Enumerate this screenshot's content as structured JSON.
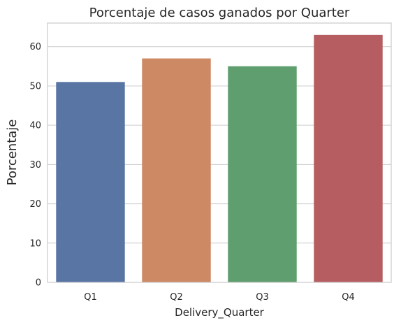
{
  "chart_data": {
    "type": "bar",
    "title": "Porcentaje de casos ganados por Quarter",
    "xlabel": "Delivery_Quarter",
    "ylabel": "Porcentaje",
    "categories": [
      "Q1",
      "Q2",
      "Q3",
      "Q4"
    ],
    "values": [
      51,
      57,
      55,
      63
    ],
    "colors": [
      "#5875a4",
      "#cc8963",
      "#5f9e6e",
      "#b55d60"
    ],
    "ylim": [
      0,
      66
    ],
    "yticks": [
      0,
      10,
      20,
      30,
      40,
      50,
      60
    ],
    "grid": "horizontal",
    "legend": "none"
  }
}
